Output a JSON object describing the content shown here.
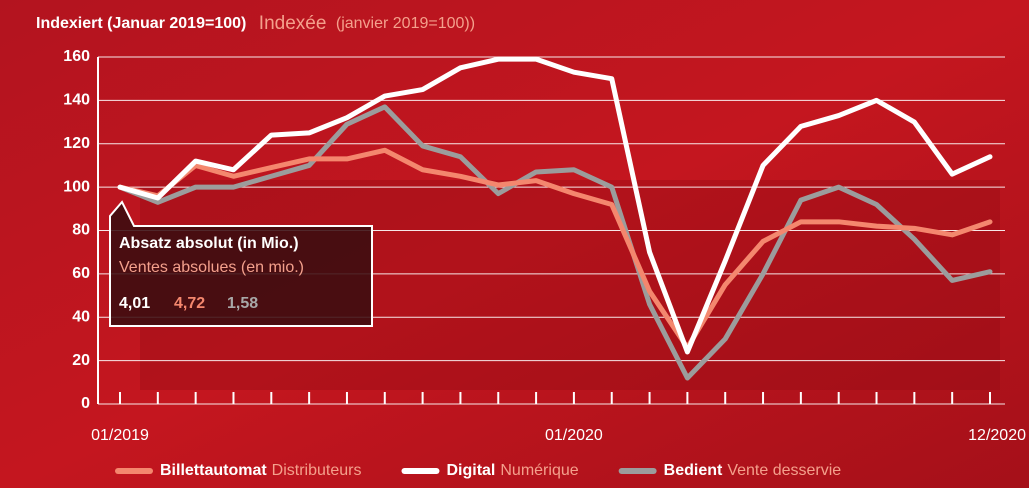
{
  "chart_data": {
    "type": "line",
    "title": [
      "Indexiert (Januar 2019=100)",
      "Indexée",
      "(janvier 2019=100))"
    ],
    "categories": [
      "01/2019",
      null,
      null,
      null,
      null,
      null,
      null,
      null,
      null,
      null,
      null,
      null,
      "01/2020",
      null,
      null,
      null,
      null,
      null,
      null,
      null,
      null,
      null,
      null,
      "12/2020"
    ],
    "ylim": [
      0,
      160
    ],
    "yticks": [
      0,
      20,
      40,
      60,
      80,
      100,
      120,
      140,
      160
    ],
    "grid": true,
    "series": [
      {
        "name": "Billettautomat",
        "name_fr": "Distributeurs",
        "color": "#f4876e",
        "values": [
          100,
          96,
          110,
          105,
          109,
          113,
          113,
          117,
          108,
          105,
          101,
          103,
          97,
          92,
          52,
          26,
          55,
          75,
          84,
          84,
          82,
          81,
          78,
          84
        ]
      },
      {
        "name": "Digital",
        "name_fr": "Numérique",
        "color": "#ffffff",
        "values": [
          100,
          95,
          112,
          108,
          124,
          125,
          132,
          142,
          145,
          155,
          159,
          159,
          153,
          150,
          70,
          24,
          66,
          110,
          128,
          133,
          140,
          130,
          106,
          114
        ]
      },
      {
        "name": "Bedient",
        "name_fr": "Vente desservie",
        "color": "#9c9c9c",
        "values": [
          100,
          93,
          100,
          100,
          105,
          110,
          129,
          137,
          119,
          114,
          97,
          107,
          108,
          100,
          46,
          12,
          30,
          60,
          94,
          100,
          92,
          76,
          57,
          61
        ]
      }
    ],
    "annotation": {
      "title_de": "Absatz absolut (in Mio.)",
      "title_fr": "Ventes absolues (en mio.)",
      "figures": [
        "4,01",
        "4,72",
        "1,58"
      ]
    }
  }
}
